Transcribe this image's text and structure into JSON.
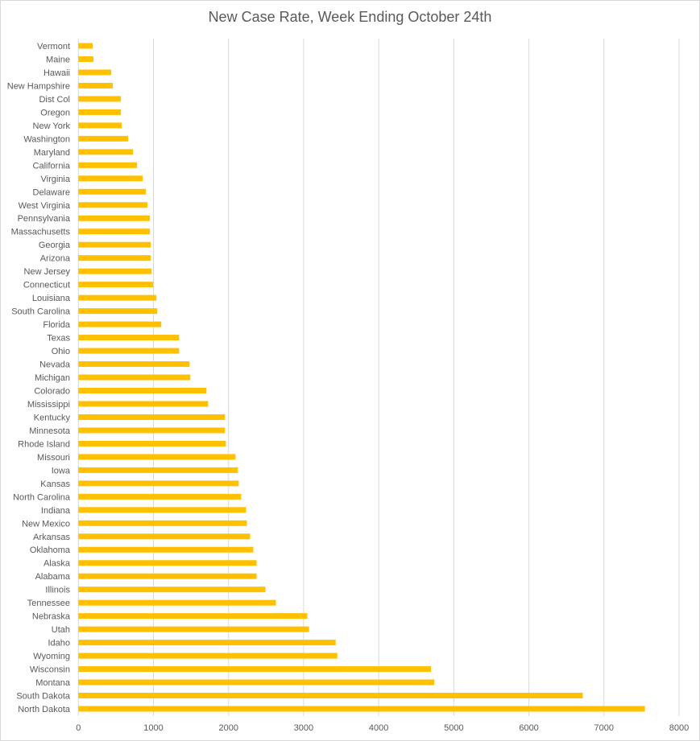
{
  "chart_data": {
    "type": "bar",
    "orientation": "horizontal",
    "title": "New Case Rate, Week Ending October 24th",
    "xlabel": "",
    "ylabel": "",
    "xlim": [
      0,
      8000
    ],
    "xticks": [
      0,
      1000,
      2000,
      3000,
      4000,
      5000,
      6000,
      7000,
      8000
    ],
    "grid": true,
    "bar_color": "#FFC000",
    "categories": [
      "Vermont",
      "Maine",
      "Hawaii",
      "New Hampshire",
      "Dist Col",
      "Oregon",
      "New York",
      "Washington",
      "Maryland",
      "California",
      "Virginia",
      "Delaware",
      "West Virginia",
      "Pennsylvania",
      "Massachusetts",
      "Georgia",
      "Arizona",
      "New Jersey",
      "Connecticut",
      "Louisiana",
      "South Carolina",
      "Florida",
      "Texas",
      "Ohio",
      "Nevada",
      "Michigan",
      "Colorado",
      "Mississippi",
      "Kentucky",
      "Minnesota",
      "Rhode Island",
      "Missouri",
      "Iowa",
      "Kansas",
      "North Carolina",
      "Indiana",
      "New Mexico",
      "Arkansas",
      "Oklahoma",
      "Alaska",
      "Alabama",
      "Illinois",
      "Tennessee",
      "Nebraska",
      "Utah",
      "Idaho",
      "Wyoming",
      "Wisconsin",
      "Montana",
      "South Dakota",
      "North Dakota"
    ],
    "values": [
      190,
      200,
      437,
      459,
      566,
      566,
      577,
      663,
      728,
      781,
      857,
      900,
      921,
      953,
      953,
      964,
      964,
      975,
      996,
      1039,
      1050,
      1104,
      1341,
      1341,
      1480,
      1491,
      1706,
      1728,
      1953,
      1953,
      1964,
      2093,
      2125,
      2136,
      2168,
      2233,
      2244,
      2287,
      2330,
      2373,
      2373,
      2491,
      2631,
      3050,
      3072,
      3427,
      3449,
      4697,
      4740,
      6718,
      7546
    ]
  }
}
